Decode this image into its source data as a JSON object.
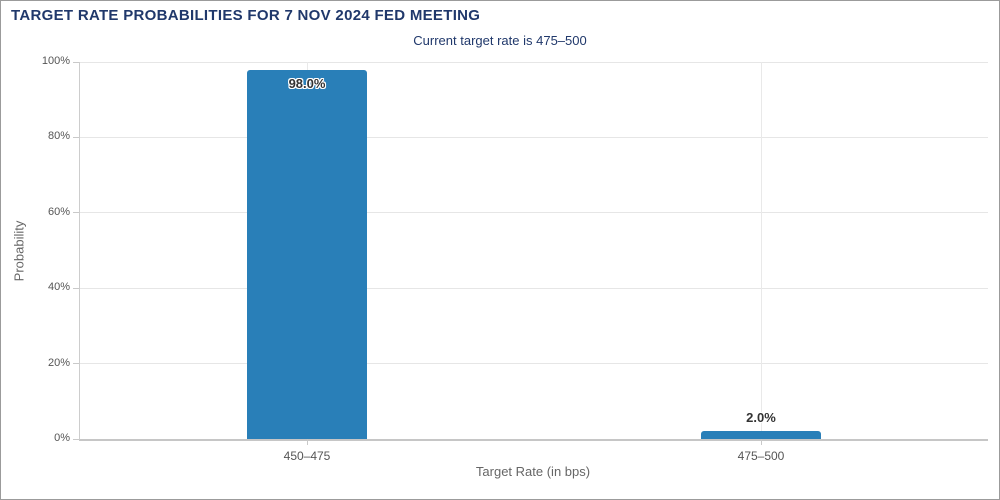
{
  "chart": {
    "colors": {
      "bar": "#297fb8",
      "title_text": "#20386b",
      "grid": "#e6e6e6",
      "axis_line": "#c9c9c9",
      "tick_label": "#555555",
      "axis_title": "#666666",
      "data_label": "#333333",
      "frame_border": "#9b9b9b"
    }
  },
  "chart_data": {
    "type": "bar",
    "title": "TARGET RATE PROBABILITIES FOR 7 NOV 2024 FED MEETING",
    "subtitle": "Current target rate is 475–500",
    "categories": [
      "450–475",
      "475–500"
    ],
    "values": [
      98.0,
      2.0
    ],
    "value_labels": [
      "98.0%",
      "2.0%"
    ],
    "xlabel": "Target Rate (in bps)",
    "ylabel": "Probability",
    "ylim": [
      0,
      100
    ],
    "yticks": [
      0,
      20,
      40,
      60,
      80,
      100
    ],
    "ytick_labels": [
      "0%",
      "20%",
      "40%",
      "60%",
      "80%",
      "100%"
    ],
    "grid": true,
    "legend": "none"
  }
}
